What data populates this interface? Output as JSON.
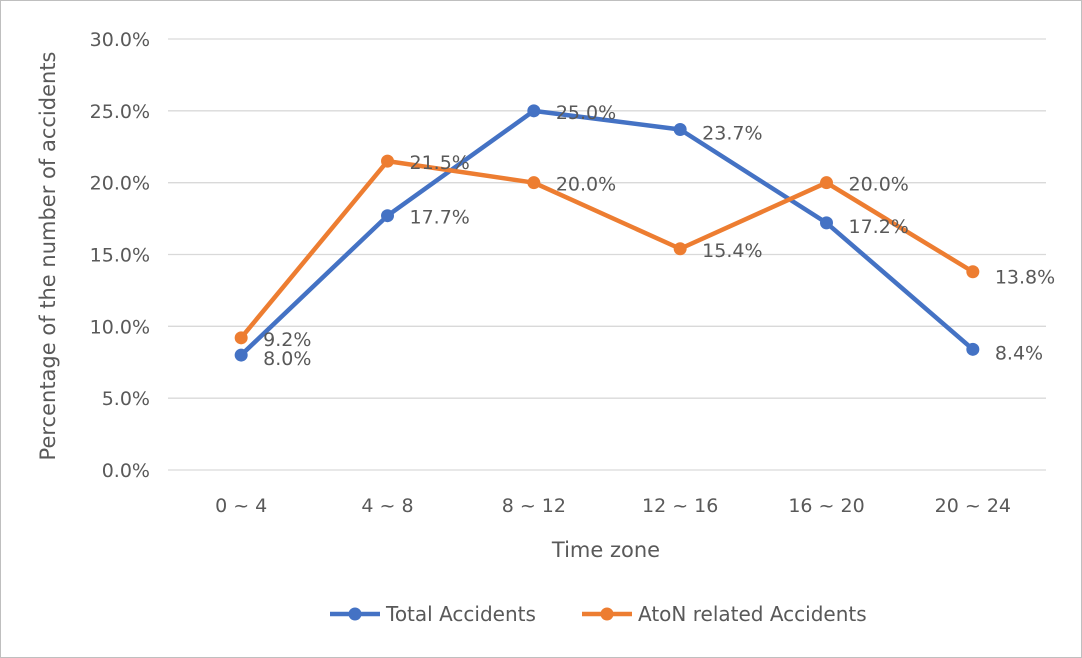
{
  "chart_data": {
    "type": "line",
    "title": "",
    "xlabel": "Time zone",
    "ylabel": "Percentage of the number of accidents",
    "categories": [
      "0 ~ 4",
      "4 ~ 8",
      "8 ~ 12",
      "12 ~ 16",
      "16 ~ 20",
      "20 ~ 24"
    ],
    "ylim": [
      0,
      30
    ],
    "yticks": [
      0,
      5,
      10,
      15,
      20,
      25,
      30
    ],
    "ytick_labels": [
      "0.0%",
      "5.0%",
      "10.0%",
      "15.0%",
      "20.0%",
      "25.0%",
      "30.0%"
    ],
    "grid": true,
    "legend_position": "bottom",
    "series": [
      {
        "name": "Total Accidents",
        "color": "#4472c4",
        "values": [
          8.0,
          17.7,
          25.0,
          23.7,
          17.2,
          8.4
        ],
        "labels": [
          "8.0%",
          "17.7%",
          "25.0%",
          "23.7%",
          "17.2%",
          "8.4%"
        ]
      },
      {
        "name": "AtoN related Accidents",
        "color": "#ed7d31",
        "values": [
          9.2,
          21.5,
          20.0,
          15.4,
          20.0,
          13.8
        ],
        "labels": [
          "9.2%",
          "21.5%",
          "20.0%",
          "15.4%",
          "20.0%",
          "13.8%"
        ]
      }
    ]
  }
}
